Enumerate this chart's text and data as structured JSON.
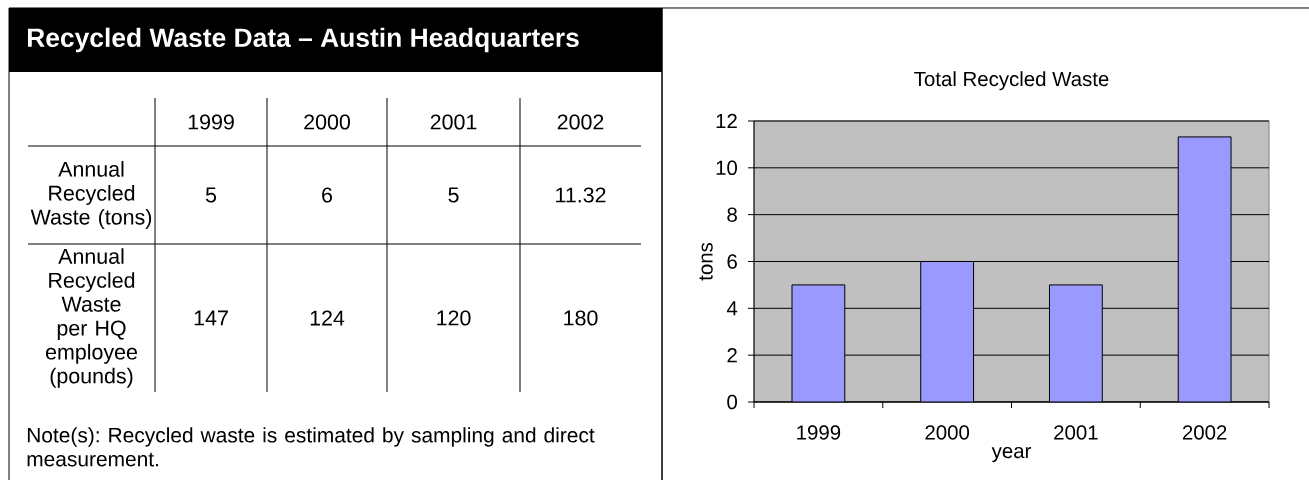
{
  "chart_data": [
    {
      "type": "heatmap",
      "title": "Recycled Waste Data – Austin Headquarters",
      "categories": [
        "1999",
        "2000",
        "2001",
        "2002"
      ],
      "y_categories": [
        "Annual Recycled Waste (tons)",
        "Annual Recycled Waste per HQ employee (pounds)"
      ],
      "cells": [
        [
          5,
          6,
          5,
          11.32
        ],
        [
          147,
          124,
          120,
          180
        ]
      ],
      "data_labels": true,
      "annotations": [
        "Note(s): Recycled waste is estimated by sampling and direct measurement."
      ]
    },
    {
      "type": "bar",
      "title": "Total Recycled Waste",
      "xlabel": "year",
      "ylabel": "tons",
      "categories": [
        "1999",
        "2000",
        "2001",
        "2002"
      ],
      "values": [
        5,
        6,
        5,
        11.32
      ],
      "color": "#9999ff",
      "ylim": [
        0,
        12
      ],
      "yticks": [
        0,
        2,
        4,
        6,
        8,
        10,
        12
      ],
      "grid": "y"
    }
  ]
}
